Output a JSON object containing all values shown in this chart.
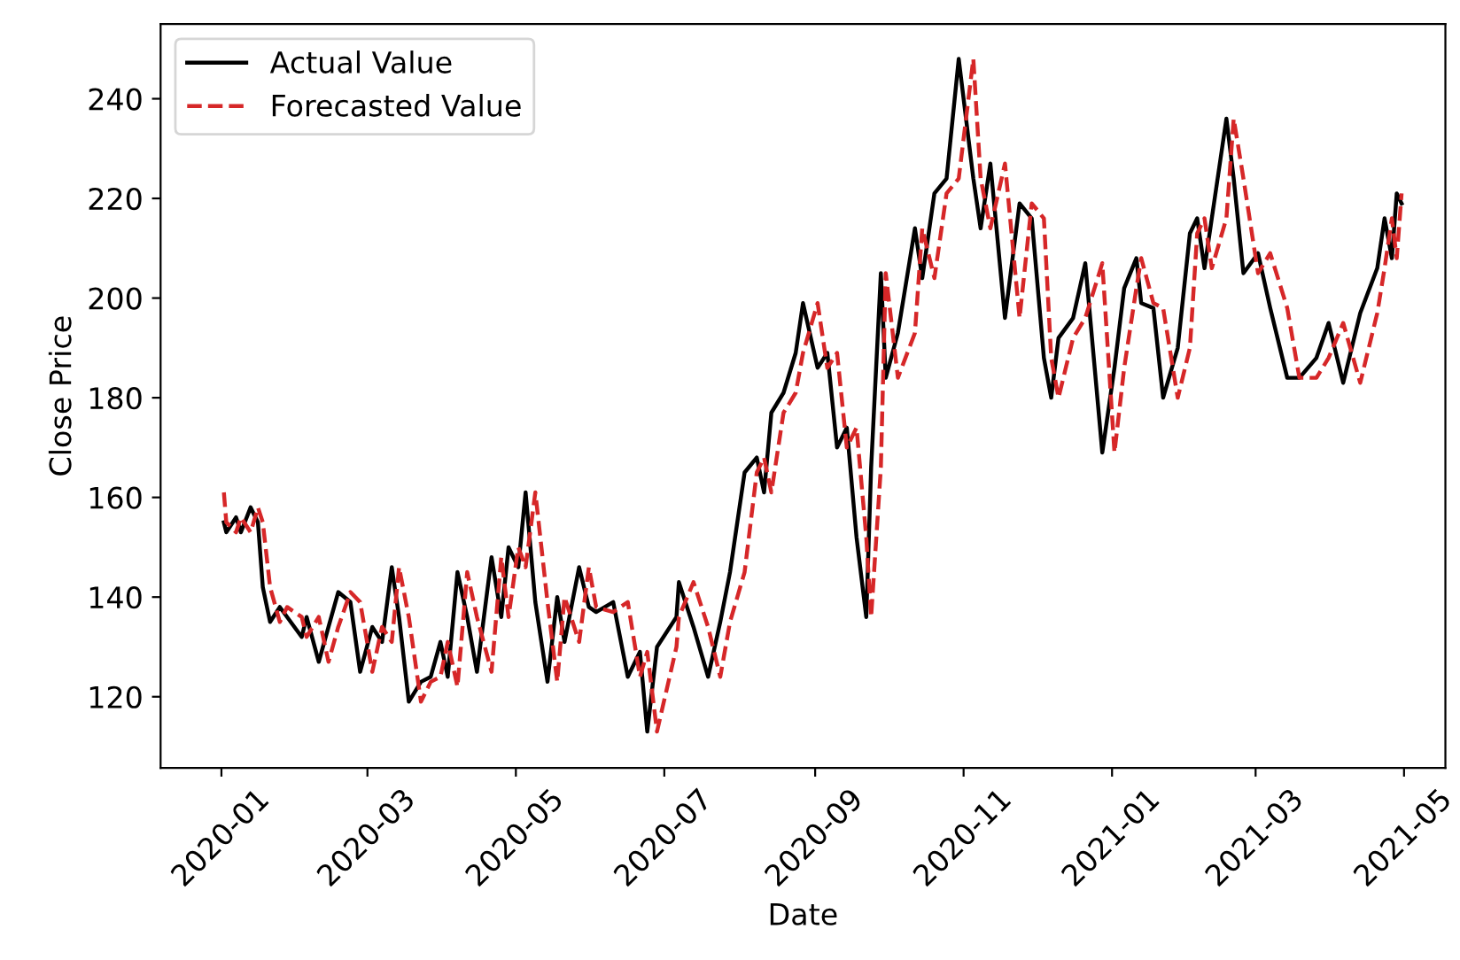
{
  "chart_data": {
    "type": "line",
    "xlabel": "Date",
    "ylabel": "Close Price",
    "x": [
      "2020-01-02",
      "2020-01-03",
      "2020-01-07",
      "2020-01-09",
      "2020-01-13",
      "2020-01-16",
      "2020-01-18",
      "2020-01-21",
      "2020-01-25",
      "2020-01-28",
      "2020-02-03",
      "2020-02-05",
      "2020-02-10",
      "2020-02-14",
      "2020-02-18",
      "2020-02-23",
      "2020-02-27",
      "2020-03-03",
      "2020-03-07",
      "2020-03-11",
      "2020-03-14",
      "2020-03-18",
      "2020-03-23",
      "2020-03-27",
      "2020-03-31",
      "2020-04-03",
      "2020-04-07",
      "2020-04-11",
      "2020-04-15",
      "2020-04-21",
      "2020-04-25",
      "2020-04-28",
      "2020-05-02",
      "2020-05-05",
      "2020-05-09",
      "2020-05-14",
      "2020-05-18",
      "2020-05-21",
      "2020-05-27",
      "2020-05-31",
      "2020-06-03",
      "2020-06-10",
      "2020-06-16",
      "2020-06-21",
      "2020-06-24",
      "2020-06-28",
      "2020-07-06",
      "2020-07-07",
      "2020-07-13",
      "2020-07-19",
      "2020-07-24",
      "2020-07-28",
      "2020-08-03",
      "2020-08-08",
      "2020-08-11",
      "2020-08-14",
      "2020-08-19",
      "2020-08-24",
      "2020-08-27",
      "2020-09-02",
      "2020-09-06",
      "2020-09-10",
      "2020-09-14",
      "2020-09-18",
      "2020-09-22",
      "2020-09-24",
      "2020-09-28",
      "2020-09-30",
      "2020-10-05",
      "2020-10-12",
      "2020-10-15",
      "2020-10-20",
      "2020-10-25",
      "2020-10-30",
      "2020-11-05",
      "2020-11-08",
      "2020-11-12",
      "2020-11-18",
      "2020-11-24",
      "2020-11-29",
      "2020-12-04",
      "2020-12-07",
      "2020-12-10",
      "2020-12-16",
      "2020-12-21",
      "2020-12-28",
      "2021-01-02",
      "2021-01-06",
      "2021-01-11",
      "2021-01-13",
      "2021-01-18",
      "2021-01-22",
      "2021-01-28",
      "2021-02-02",
      "2021-02-05",
      "2021-02-08",
      "2021-02-11",
      "2021-02-17",
      "2021-02-20",
      "2021-02-24",
      "2021-03-02",
      "2021-03-07",
      "2021-03-14",
      "2021-03-19",
      "2021-03-26",
      "2021-03-31",
      "2021-04-06",
      "2021-04-13",
      "2021-04-20",
      "2021-04-23",
      "2021-04-26",
      "2021-04-28",
      "2021-04-30"
    ],
    "series": [
      {
        "name": "Actual Value",
        "color": "#000000",
        "line_style": "solid",
        "values": [
          155,
          153,
          156,
          153,
          158,
          155,
          142,
          135,
          138,
          136,
          132,
          136,
          127,
          134,
          141,
          139,
          125,
          134,
          131,
          146,
          136,
          119,
          123,
          124,
          131,
          124,
          145,
          136,
          125,
          148,
          136,
          150,
          146,
          161,
          139,
          123,
          140,
          131,
          146,
          138,
          137,
          139,
          124,
          129,
          113,
          130,
          136,
          143,
          134,
          124,
          135,
          145,
          165,
          168,
          161,
          177,
          181,
          189,
          199,
          186,
          189,
          170,
          174,
          152,
          136,
          166,
          205,
          184,
          193,
          214,
          204,
          221,
          224,
          248,
          224,
          214,
          227,
          196,
          219,
          216,
          188,
          180,
          192,
          196,
          207,
          169,
          186,
          202,
          208,
          199,
          198,
          180,
          190,
          213,
          216,
          206,
          216,
          236,
          224,
          205,
          209,
          198,
          184,
          184,
          188,
          195,
          183,
          197,
          206,
          216,
          208,
          221,
          219
        ]
      },
      {
        "name": "Forecasted Value",
        "color": "#d62728",
        "line_style": "dashed",
        "values": [
          161,
          155,
          153,
          156,
          153,
          158,
          155,
          142,
          135,
          138,
          136,
          132,
          136,
          127,
          134,
          141,
          139,
          125,
          134,
          131,
          146,
          136,
          119,
          123,
          124,
          131,
          122,
          145,
          136,
          125,
          148,
          136,
          150,
          146,
          161,
          139,
          123,
          140,
          131,
          146,
          138,
          137,
          139,
          124,
          129,
          113,
          130,
          136,
          143,
          134,
          124,
          135,
          145,
          165,
          168,
          161,
          177,
          181,
          189,
          199,
          186,
          189,
          170,
          174,
          152,
          136,
          166,
          205,
          184,
          193,
          214,
          204,
          221,
          224,
          248,
          224,
          214,
          227,
          196,
          219,
          216,
          188,
          180,
          192,
          196,
          207,
          169,
          186,
          202,
          208,
          199,
          198,
          180,
          190,
          213,
          216,
          206,
          216,
          236,
          224,
          205,
          209,
          198,
          184,
          184,
          188,
          195,
          183,
          197,
          206,
          216,
          208,
          221
        ]
      }
    ],
    "xlim": [
      "2019-12-07",
      "2021-05-18"
    ],
    "xticks": [
      {
        "value": "2020-01-01",
        "label": "2020-01"
      },
      {
        "value": "2020-03-01",
        "label": "2020-03"
      },
      {
        "value": "2020-05-01",
        "label": "2020-05"
      },
      {
        "value": "2020-07-01",
        "label": "2020-07"
      },
      {
        "value": "2020-09-01",
        "label": "2020-09"
      },
      {
        "value": "2020-11-01",
        "label": "2020-11"
      },
      {
        "value": "2021-01-01",
        "label": "2021-01"
      },
      {
        "value": "2021-03-01",
        "label": "2021-03"
      },
      {
        "value": "2021-05-01",
        "label": "2021-05"
      }
    ],
    "ylim": [
      105.7,
      255
    ],
    "yticks": [
      120,
      140,
      160,
      180,
      200,
      220,
      240
    ],
    "grid": false,
    "legend": "top left"
  }
}
